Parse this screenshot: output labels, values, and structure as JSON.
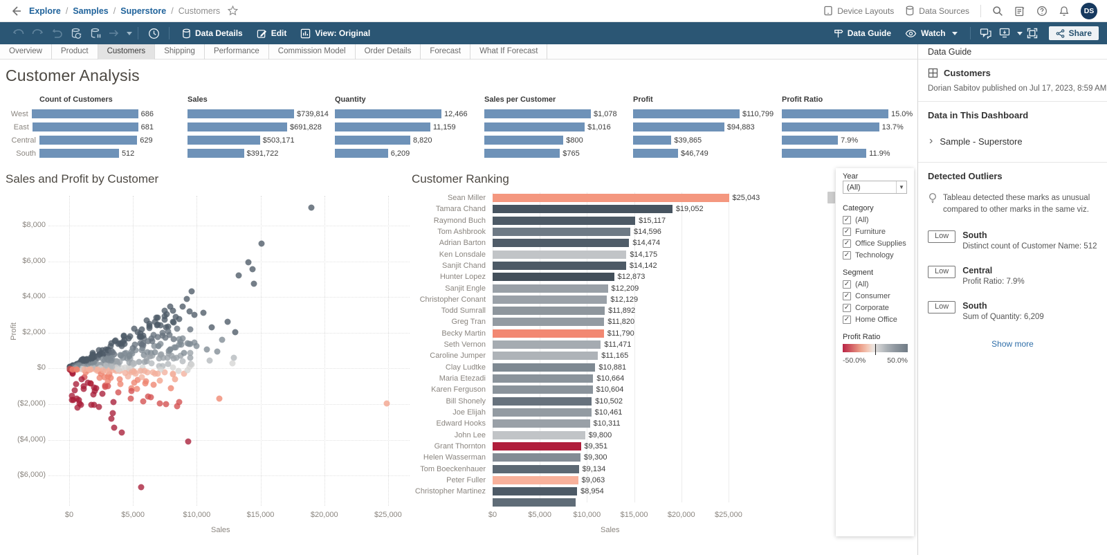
{
  "topbar": {
    "breadcrumb": [
      "Explore",
      "Samples",
      "Superstore"
    ],
    "current": "Customers",
    "device_layouts": "Device Layouts",
    "data_sources": "Data Sources",
    "avatar_initials": "DS"
  },
  "toolbar": {
    "data_details": "Data Details",
    "edit": "Edit",
    "view": "View: Original",
    "data_guide": "Data Guide",
    "watch": "Watch",
    "share": "Share"
  },
  "tabs": {
    "items": [
      "Overview",
      "Product",
      "Customers",
      "Shipping",
      "Performance",
      "Commission Model",
      "Order Details",
      "Forecast",
      "What If Forecast"
    ],
    "active": "Customers"
  },
  "dashboard": {
    "title": "Customer Analysis"
  },
  "ui": {
    "kpi_bar_color": "#6e92b8",
    "toolbar_color": "#2b5674",
    "link_blue": "#20639b"
  },
  "chart_data": [
    {
      "role": "kpi",
      "type": "bar",
      "title": "Count of Customers",
      "categories": [
        "West",
        "East",
        "Central",
        "South"
      ],
      "values": [
        686,
        681,
        629,
        512
      ],
      "labels": [
        "686",
        "681",
        "629",
        "512"
      ],
      "bar_color": "#6e92b8",
      "show_category_labels": true
    },
    {
      "role": "kpi",
      "type": "bar",
      "title": "Sales",
      "categories": [
        "West",
        "East",
        "Central",
        "South"
      ],
      "values": [
        739814,
        691828,
        503171,
        391722
      ],
      "labels": [
        "$739,814",
        "$691,828",
        "$503,171",
        "$391,722"
      ],
      "bar_color": "#6e92b8"
    },
    {
      "role": "kpi",
      "type": "bar",
      "title": "Quantity",
      "categories": [
        "West",
        "East",
        "Central",
        "South"
      ],
      "values": [
        12466,
        11159,
        8820,
        6209
      ],
      "labels": [
        "12,466",
        "11,159",
        "8,820",
        "6,209"
      ],
      "bar_color": "#6e92b8"
    },
    {
      "role": "kpi",
      "type": "bar",
      "title": "Sales per Customer",
      "categories": [
        "West",
        "East",
        "Central",
        "South"
      ],
      "values": [
        1078,
        1016,
        800,
        765
      ],
      "labels": [
        "$1,078",
        "$1,016",
        "$800",
        "$765"
      ],
      "bar_color": "#6e92b8"
    },
    {
      "role": "kpi",
      "type": "bar",
      "title": "Profit",
      "categories": [
        "West",
        "East",
        "Central",
        "South"
      ],
      "values": [
        110799,
        94883,
        39865,
        46749
      ],
      "labels": [
        "$110,799",
        "$94,883",
        "$39,865",
        "$46,749"
      ],
      "bar_color": "#6e92b8"
    },
    {
      "role": "kpi",
      "type": "bar",
      "title": "Profit Ratio",
      "categories": [
        "West",
        "East",
        "Central",
        "South"
      ],
      "values": [
        15.0,
        13.7,
        7.9,
        11.9
      ],
      "labels": [
        "15.0%",
        "13.7%",
        "7.9%",
        "11.9%"
      ],
      "bar_color": "#6e92b8"
    },
    {
      "role": "scatter",
      "type": "scatter",
      "title": "Sales and Profit by Customer",
      "xlabel": "Sales",
      "ylabel": "Profit",
      "xlim": [
        0,
        26500
      ],
      "ylim": [
        -7600,
        9700
      ],
      "grid": "dotted",
      "color_encoding": "Profit Ratio (red-gray diverging)",
      "xticks": [
        {
          "v": 0,
          "label": "$0"
        },
        {
          "v": 5000,
          "label": "$5,000"
        },
        {
          "v": 10000,
          "label": "$10,000"
        },
        {
          "v": 15000,
          "label": "$15,000"
        },
        {
          "v": 20000,
          "label": "$20,000"
        },
        {
          "v": 25000,
          "label": "$25,000"
        }
      ],
      "yticks": [
        {
          "v": 8000,
          "label": "$8,000"
        },
        {
          "v": 6000,
          "label": "$6,000"
        },
        {
          "v": 4000,
          "label": "$4,000"
        },
        {
          "v": 2000,
          "label": "$2,000"
        },
        {
          "v": 0,
          "label": "$0"
        },
        {
          "v": -2000,
          "label": "($2,000)"
        },
        {
          "v": -4000,
          "label": "($4,000)"
        },
        {
          "v": -6000,
          "label": "($6,000)"
        }
      ],
      "ratio_palette": [
        [
          0.3,
          "#4d5a67"
        ],
        [
          0.2,
          "#66727e"
        ],
        [
          0.12,
          "#7f8a93"
        ],
        [
          0.06,
          "#9aa1a8"
        ],
        [
          0.02,
          "#b4b9bd"
        ],
        [
          -0.02,
          "#d5d5d4"
        ],
        [
          -0.1,
          "#f2b09c"
        ],
        [
          -0.25,
          "#ee8470"
        ],
        [
          -0.5,
          "#d4504f"
        ],
        [
          -99,
          "#a81e38"
        ]
      ],
      "cloud": {
        "seed": 20,
        "fan_count": 520,
        "neg_count": 70
      },
      "outliers": [
        [
          19.0,
          9.0,
          "#4d5a67"
        ],
        [
          15.1,
          7.0,
          "#4d5a67"
        ],
        [
          14.05,
          5.95,
          "#4d5a67"
        ],
        [
          14.4,
          5.55,
          "#4d5a67"
        ],
        [
          13.3,
          5.2,
          "#4d5a67"
        ],
        [
          14.5,
          4.75,
          "#4d5a67"
        ],
        [
          9.2,
          3.9,
          "#4d5a67"
        ],
        [
          10.5,
          3.1,
          "#4d5a67"
        ],
        [
          8.35,
          2.9,
          "#4d5a67"
        ],
        [
          8.6,
          2.75,
          "#4d5a67"
        ],
        [
          12.4,
          2.6,
          "#4d5a67"
        ],
        [
          11.2,
          2.3,
          "#4d5a67"
        ],
        [
          13.0,
          2.05,
          "#4d5a67"
        ],
        [
          6.3,
          2.25,
          "#4d5a67"
        ],
        [
          6.9,
          2.4,
          "#4d5a67"
        ],
        [
          12.0,
          1.6,
          "#7f8a93"
        ],
        [
          10.0,
          1.25,
          "#7f8a93"
        ],
        [
          11.6,
          0.95,
          "#7f8a93"
        ],
        [
          9.0,
          0.85,
          "#7f8a93"
        ],
        [
          10.8,
          1.05,
          "#7f8a93"
        ],
        [
          12.9,
          0.6,
          "#b4b9bd"
        ],
        [
          11.0,
          0.45,
          "#b4b9bd"
        ],
        [
          12.8,
          0.3,
          "#d5d5d4"
        ],
        [
          9.6,
          0.2,
          "#d5d5d4"
        ],
        [
          24.9,
          -1.95,
          "#f2a18b"
        ],
        [
          11.75,
          -1.7,
          "#f0876f"
        ],
        [
          8.3,
          -0.62,
          "#f2a18b"
        ],
        [
          7.1,
          -0.7,
          "#f2a18b"
        ],
        [
          8.0,
          -1.1,
          "#ee8470"
        ],
        [
          6.6,
          -0.9,
          "#ee8470"
        ],
        [
          5.1,
          -0.8,
          "#ee8470"
        ],
        [
          8.6,
          -1.9,
          "#d4504f"
        ],
        [
          8.45,
          -2.1,
          "#d4504f"
        ],
        [
          6.4,
          -1.6,
          "#d4504f"
        ],
        [
          5.8,
          -1.85,
          "#d4504f"
        ],
        [
          4.9,
          -1.25,
          "#d4504f"
        ],
        [
          5.65,
          -6.65,
          "#a81e38"
        ],
        [
          9.35,
          -4.1,
          "#a81e38"
        ],
        [
          4.1,
          -3.6,
          "#a81e38"
        ],
        [
          3.55,
          -3.3,
          "#a81e38"
        ],
        [
          3.3,
          -2.8,
          "#a81e38"
        ],
        [
          2.35,
          -2.15,
          "#a81e38"
        ],
        [
          1.45,
          -0.8,
          "#a81e38"
        ],
        [
          1.7,
          -0.85,
          "#a81e38"
        ],
        [
          2.6,
          -1.4,
          "#a81e38"
        ]
      ]
    },
    {
      "role": "ranking",
      "type": "bar",
      "title": "Customer Ranking",
      "xlabel": "Sales",
      "xticks": [
        {
          "v": 0,
          "label": "$0"
        },
        {
          "v": 5000,
          "label": "$5,000"
        },
        {
          "v": 10000,
          "label": "$10,000"
        },
        {
          "v": 15000,
          "label": "$15,000"
        },
        {
          "v": 20000,
          "label": "$20,000"
        },
        {
          "v": 25000,
          "label": "$25,000"
        }
      ],
      "rows": [
        {
          "name": "Sean Miller",
          "value": 25043,
          "label": "$25,043",
          "color": "#f4977f"
        },
        {
          "name": "Tamara Chand",
          "value": 19052,
          "label": "$19,052",
          "color": "#475460"
        },
        {
          "name": "Raymond Buch",
          "value": 15117,
          "label": "$15,117",
          "color": "#4d5a66"
        },
        {
          "name": "Tom Ashbrook",
          "value": 14596,
          "label": "$14,596",
          "color": "#6e7a85"
        },
        {
          "name": "Adrian Barton",
          "value": 14474,
          "label": "$14,474",
          "color": "#4f5c68"
        },
        {
          "name": "Ken Lonsdale",
          "value": 14175,
          "label": "$14,175",
          "color": "#c1c4c7"
        },
        {
          "name": "Sanjit Chand",
          "value": 14142,
          "label": "$14,142",
          "color": "#4d5a66"
        },
        {
          "name": "Hunter Lopez",
          "value": 12873,
          "label": "$12,873",
          "color": "#434f5a"
        },
        {
          "name": "Sanjit Engle",
          "value": 12209,
          "label": "$12,209",
          "color": "#99a0a7"
        },
        {
          "name": "Christopher Conant",
          "value": 12129,
          "label": "$12,129",
          "color": "#9aa1a8"
        },
        {
          "name": "Todd Sumrall",
          "value": 11892,
          "label": "$11,892",
          "color": "#8e969d"
        },
        {
          "name": "Greg Tran",
          "value": 11820,
          "label": "$11,820",
          "color": "#939ba2"
        },
        {
          "name": "Becky Martin",
          "value": 11790,
          "label": "$11,790",
          "color": "#f28872"
        },
        {
          "name": "Seth Vernon",
          "value": 11471,
          "label": "$11,471",
          "color": "#a5abb1"
        },
        {
          "name": "Caroline Jumper",
          "value": 11165,
          "label": "$11,165",
          "color": "#aeb3b8"
        },
        {
          "name": "Clay Ludtke",
          "value": 10881,
          "label": "$10,881",
          "color": "#7e8992"
        },
        {
          "name": "Maria Etezadi",
          "value": 10664,
          "label": "$10,664",
          "color": "#8a939b"
        },
        {
          "name": "Karen Ferguson",
          "value": 10604,
          "label": "$10,604",
          "color": "#8a939b"
        },
        {
          "name": "Bill Shonely",
          "value": 10502,
          "label": "$10,502",
          "color": "#67727d"
        },
        {
          "name": "Joe Elijah",
          "value": 10461,
          "label": "$10,461",
          "color": "#939ba2"
        },
        {
          "name": "Edward Hooks",
          "value": 10311,
          "label": "$10,311",
          "color": "#99a0a7"
        },
        {
          "name": "John Lee",
          "value": 9800,
          "label": "$9,800",
          "color": "#c1c4c7"
        },
        {
          "name": "Grant Thornton",
          "value": 9351,
          "label": "$9,351",
          "color": "#b01e3c"
        },
        {
          "name": "Helen Wasserman",
          "value": 9300,
          "label": "$9,300",
          "color": "#838c95"
        },
        {
          "name": "Tom Boeckenhauer",
          "value": 9134,
          "label": "$9,134",
          "color": "#5c6873"
        },
        {
          "name": "Peter Fuller",
          "value": 9063,
          "label": "$9,063",
          "color": "#f8b19b"
        },
        {
          "name": "Christopher Martinez",
          "value": 8954,
          "label": "$8,954",
          "color": "#4d5a66"
        },
        {
          "name": "",
          "value": 8800,
          "label": "",
          "color": "#5f6c77"
        }
      ]
    }
  ],
  "filters": {
    "year": {
      "label": "Year",
      "value": "(All)"
    },
    "category": {
      "label": "Category",
      "options": [
        "(All)",
        "Furniture",
        "Office Supplies",
        "Technology"
      ],
      "checked": [
        true,
        true,
        true,
        true
      ]
    },
    "segment": {
      "label": "Segment",
      "options": [
        "(All)",
        "Consumer",
        "Corporate",
        "Home Office"
      ],
      "checked": [
        true,
        true,
        true,
        true
      ]
    },
    "profit_ratio_legend": {
      "label": "Profit Ratio",
      "min_label": "-50.0%",
      "max_label": "50.0%"
    }
  },
  "data_guide": {
    "header": "Data Guide",
    "sheet": {
      "title": "Customers",
      "byline": "Dorian Sabitov published on Jul 17, 2023, 8:59 AM"
    },
    "data_section": {
      "heading": "Data in This Dashboard",
      "source": "Sample - Superstore"
    },
    "outliers": {
      "heading": "Detected Outliers",
      "note": "Tableau detected these marks as unusual compared to other marks in the same viz.",
      "items": [
        {
          "badge": "Low",
          "title": "South",
          "detail": "Distinct count of Customer Name: 512"
        },
        {
          "badge": "Low",
          "title": "Central",
          "detail": "Profit Ratio: 7.9%"
        },
        {
          "badge": "Low",
          "title": "South",
          "detail": "Sum of Quantity: 6,209"
        }
      ],
      "show_more": "Show more"
    }
  }
}
